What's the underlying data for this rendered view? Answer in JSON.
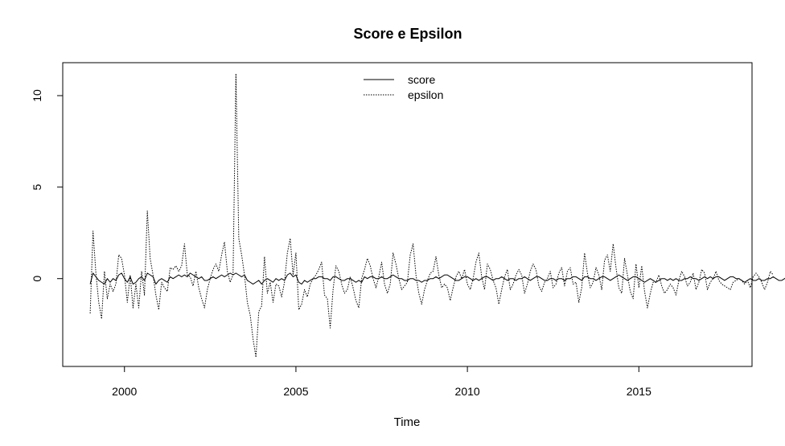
{
  "chart_data": {
    "type": "line",
    "title": "Score e Epsilon",
    "xlabel": "Time",
    "ylabel": "",
    "xlim": [
      1998.2,
      2018.3
    ],
    "ylim": [
      -4.8,
      11.8
    ],
    "x_ticks": [
      2000,
      2005,
      2010,
      2015
    ],
    "x_tick_labels": [
      "2000",
      "2005",
      "2010",
      "2015"
    ],
    "y_ticks": [
      0,
      5,
      10
    ],
    "y_tick_labels": [
      "0",
      "5",
      "10"
    ],
    "grid": false,
    "legend_position": "top-center",
    "x_start": 1999.0,
    "x_step": 0.0833333,
    "series": [
      {
        "name": "score",
        "line_style": "solid",
        "values": [
          -0.3,
          0.3,
          0.1,
          -0.1,
          -0.2,
          -0.3,
          0.0,
          -0.2,
          0.0,
          -0.1,
          0.2,
          0.3,
          0.0,
          -0.2,
          0.1,
          -0.3,
          -0.2,
          0.0,
          0.1,
          -0.1,
          0.3,
          0.2,
          0.1,
          -0.3,
          -0.1,
          0.0,
          -0.1,
          -0.2,
          0.1,
          0.0,
          0.1,
          0.2,
          0.1,
          0.2,
          0.1,
          0.3,
          0.2,
          0.1,
          0.0,
          0.1,
          -0.1,
          -0.1,
          0.0,
          0.1,
          0.0,
          0.1,
          0.2,
          0.1,
          0.2,
          0.3,
          0.2,
          0.3,
          0.2,
          0.1,
          0.2,
          -0.1,
          -0.2,
          -0.3,
          -0.2,
          -0.1,
          -0.3,
          -0.1,
          0.0,
          -0.1,
          -0.2,
          0.0,
          -0.1,
          0.0,
          -0.1,
          0.2,
          0.3,
          0.1,
          0.2,
          -0.2,
          -0.3,
          -0.1,
          -0.2,
          -0.1,
          0.0,
          0.0,
          0.1,
          0.1,
          0.0,
          0.0,
          -0.1,
          0.1,
          0.1,
          0.0,
          -0.1,
          -0.1,
          0.0,
          0.0,
          -0.1,
          -0.2,
          -0.1,
          -0.2,
          0.1,
          0.0,
          0.1,
          0.1,
          0.0,
          0.0,
          0.1,
          0.0,
          0.0,
          0.1,
          0.2,
          0.1,
          0.0,
          0.0,
          -0.1,
          -0.1,
          0.0,
          0.0,
          -0.1,
          -0.1,
          -0.2,
          -0.1,
          -0.1,
          0.0,
          0.0,
          0.1,
          0.0,
          0.1,
          0.2,
          0.2,
          0.1,
          0.0,
          -0.1,
          -0.1,
          0.0,
          0.1,
          0.1,
          0.0,
          -0.1,
          0.0,
          -0.1,
          0.0,
          0.1,
          0.1,
          0.0,
          -0.1,
          0.0,
          0.0,
          0.1,
          0.0,
          -0.1,
          0.0,
          0.0,
          -0.1,
          0.0,
          0.0,
          0.1,
          0.0,
          -0.1,
          0.0,
          0.1,
          0.1,
          0.0,
          -0.1,
          -0.1,
          0.0,
          0.0,
          -0.1,
          0.0,
          0.0,
          -0.1,
          0.0,
          0.0,
          0.1,
          0.1,
          0.0,
          -0.1,
          0.1,
          0.1,
          0.0,
          0.0,
          -0.1,
          0.0,
          0.1,
          0.1,
          0.0,
          -0.1,
          0.0,
          0.1,
          0.2,
          0.1,
          0.0,
          -0.1,
          0.0,
          0.1,
          0.1,
          0.0,
          -0.1,
          -0.2,
          -0.1,
          0.0,
          -0.1,
          -0.2,
          -0.1,
          0.0,
          0.0,
          -0.1,
          0.0,
          -0.1,
          0.0,
          -0.1,
          -0.1,
          0.0,
          0.0,
          0.1,
          0.0,
          0.0,
          -0.1,
          0.0,
          0.1,
          0.0,
          0.1,
          0.0,
          0.1,
          0.1,
          0.0,
          -0.1,
          0.0,
          0.1,
          0.1,
          0.0,
          0.0,
          -0.1,
          -0.2,
          -0.1,
          0.0,
          -0.1,
          -0.1,
          0.0,
          -0.1,
          -0.1,
          0.0,
          0.0,
          0.1,
          0.0,
          -0.1,
          -0.1,
          0.0,
          0.1,
          0.1
        ]
      },
      {
        "name": "epsilon",
        "line_style": "dotted",
        "values": [
          -1.9,
          2.6,
          0.3,
          -1.3,
          -2.2,
          0.4,
          -1.1,
          -0.3,
          -0.7,
          -0.3,
          1.3,
          1.1,
          0.2,
          -1.3,
          0.2,
          -1.6,
          -0.3,
          -1.6,
          0.4,
          -0.9,
          3.7,
          1.1,
          0.2,
          -0.9,
          -1.7,
          -0.2,
          -0.5,
          -0.7,
          0.6,
          0.5,
          0.7,
          0.4,
          0.7,
          1.9,
          0.2,
          0.1,
          -0.4,
          0.4,
          -0.5,
          -1.1,
          -1.6,
          -0.6,
          0.0,
          0.5,
          0.8,
          0.4,
          1.3,
          2.0,
          0.4,
          -0.2,
          0.2,
          11.2,
          2.2,
          1.3,
          0.2,
          -1.3,
          -2.0,
          -3.3,
          -4.3,
          -1.8,
          -1.5,
          1.2,
          -0.8,
          -0.2,
          -1.3,
          -0.3,
          -0.4,
          -1.0,
          -0.2,
          1.4,
          2.2,
          0.2,
          1.4,
          -1.7,
          -1.4,
          -0.6,
          -1.0,
          -0.3,
          0.0,
          0.2,
          0.5,
          0.9,
          -0.9,
          -1.1,
          -2.7,
          -0.6,
          0.7,
          0.4,
          -0.3,
          -0.8,
          -0.6,
          0.1,
          -0.5,
          -1.2,
          -1.6,
          0.0,
          0.5,
          1.1,
          0.7,
          0.0,
          -0.5,
          0.1,
          0.9,
          -0.3,
          -0.8,
          -0.3,
          1.4,
          0.8,
          0.0,
          -0.6,
          -0.4,
          -0.2,
          1.3,
          1.9,
          0.2,
          -0.8,
          -1.4,
          -0.6,
          -0.1,
          0.3,
          0.4,
          1.2,
          0.2,
          -0.5,
          -0.3,
          -0.5,
          -1.2,
          -0.5,
          0.1,
          0.4,
          0.0,
          0.5,
          -0.3,
          -0.6,
          0.0,
          0.9,
          1.4,
          0.1,
          -0.6,
          0.8,
          0.5,
          -0.1,
          -0.5,
          -1.4,
          -0.6,
          0.1,
          0.5,
          -0.6,
          -0.3,
          0.2,
          0.5,
          0.2,
          -0.8,
          -0.3,
          0.4,
          0.8,
          0.5,
          -0.4,
          -0.7,
          -0.2,
          0.0,
          0.4,
          -0.5,
          -0.3,
          0.3,
          0.6,
          -0.4,
          0.4,
          0.6,
          -0.3,
          -0.2,
          -1.3,
          -0.5,
          1.4,
          0.3,
          -0.5,
          -0.2,
          0.6,
          0.2,
          -0.6,
          1.0,
          1.3,
          0.4,
          1.9,
          0.6,
          -0.5,
          -0.8,
          1.1,
          0.2,
          -0.7,
          -1.1,
          0.8,
          -0.5,
          0.7,
          -0.7,
          -1.6,
          -0.8,
          -0.2,
          -0.2,
          0.2,
          -0.4,
          -0.8,
          -0.6,
          -0.3,
          -0.5,
          -0.9,
          -0.1,
          0.4,
          0.1,
          -0.4,
          -0.2,
          0.3,
          -0.6,
          -0.2,
          0.5,
          0.3,
          -0.6,
          -0.2,
          0.0,
          0.4,
          -0.1,
          -0.3,
          -0.4,
          -0.5,
          -0.6,
          -0.2,
          -0.1,
          0.0,
          -0.1,
          -0.3,
          -0.1,
          -0.5,
          0.1,
          0.3,
          0.1,
          -0.2,
          -0.6,
          -0.2,
          0.4,
          0.2
        ]
      }
    ]
  }
}
